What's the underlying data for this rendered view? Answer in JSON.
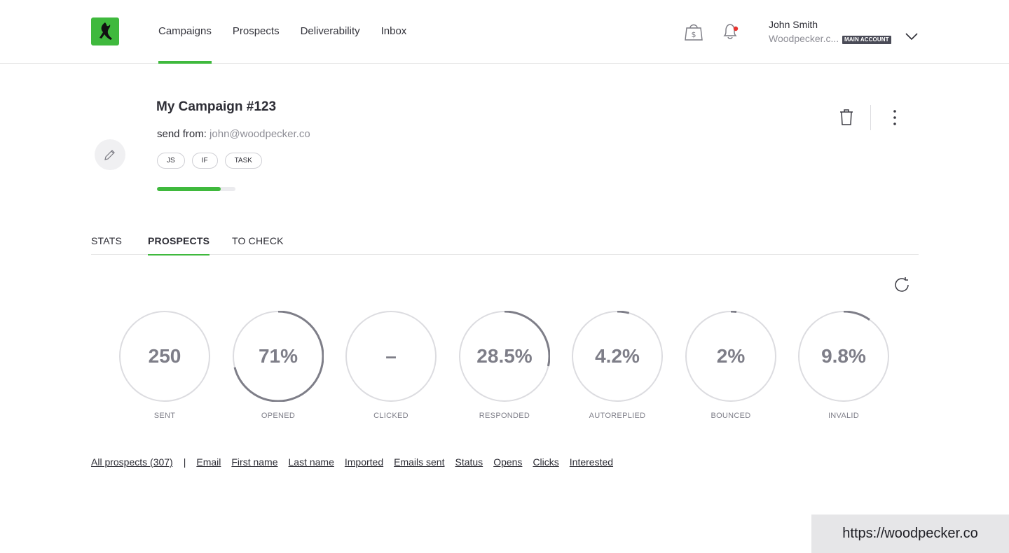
{
  "nav": {
    "items": [
      {
        "label": "Campaigns",
        "active": true
      },
      {
        "label": "Prospects",
        "active": false
      },
      {
        "label": "Deliverability",
        "active": false
      },
      {
        "label": "Inbox",
        "active": false
      }
    ]
  },
  "user": {
    "name": "John Smith",
    "company": "Woodpecker.c...",
    "badge": "MAIN ACCOUNT"
  },
  "campaign": {
    "title": "My Campaign #123",
    "send_from_label": "send from:",
    "send_from_email": "john@woodpecker.co",
    "tags": [
      "JS",
      "IF",
      "TASK"
    ],
    "progress": 0.81
  },
  "tabs": [
    {
      "label": "STATS",
      "active": false
    },
    {
      "label": "PROSPECTS",
      "active": true
    },
    {
      "label": "TO CHECK",
      "active": false
    }
  ],
  "stats": [
    {
      "label": "SENT",
      "value": "250",
      "fraction": 0
    },
    {
      "label": "OPENED",
      "value": "71%",
      "fraction": 0.71
    },
    {
      "label": "CLICKED",
      "value": "–",
      "fraction": 0
    },
    {
      "label": "RESPONDED",
      "value": "28.5%",
      "fraction": 0.285
    },
    {
      "label": "AUTOREPLIED",
      "value": "4.2%",
      "fraction": 0.042
    },
    {
      "label": "BOUNCED",
      "value": "2%",
      "fraction": 0.02
    },
    {
      "label": "INVALID",
      "value": "9.8%",
      "fraction": 0.098
    }
  ],
  "columns": {
    "all": "All prospects (307)",
    "separator": "|",
    "links": [
      "Email",
      "First name",
      "Last name",
      "Imported",
      "Emails sent",
      "Status",
      "Opens",
      "Clicks",
      "Interested"
    ]
  },
  "url_badge": "https://woodpecker.co",
  "colors": {
    "accent": "#3fb93d",
    "ring_track": "#dcdce0",
    "ring_progress": "#7e7e88",
    "notification_dot": "#e8332f"
  },
  "icons": [
    "logo-icon",
    "shopping-bag-icon",
    "bell-icon",
    "chevron-down-icon",
    "pencil-icon",
    "trash-icon",
    "more-vertical-icon",
    "refresh-icon"
  ]
}
